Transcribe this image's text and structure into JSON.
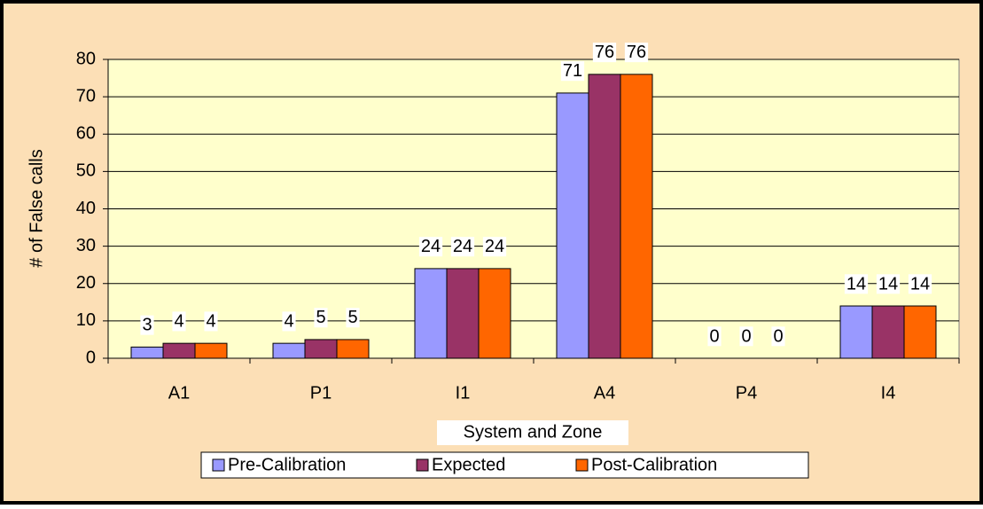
{
  "chart_data": {
    "type": "bar",
    "categories": [
      "A1",
      "P1",
      "I1",
      "A4",
      "P4",
      "I4"
    ],
    "series": [
      {
        "name": "Pre-Calibration",
        "color": "#9999ff",
        "values": [
          3,
          4,
          24,
          71,
          0,
          14
        ]
      },
      {
        "name": "Expected",
        "color": "#993366",
        "values": [
          4,
          5,
          24,
          76,
          0,
          14
        ]
      },
      {
        "name": "Post-Calibration",
        "color": "#ff6600",
        "values": [
          4,
          5,
          24,
          76,
          0,
          14
        ]
      }
    ],
    "xlabel": "System and Zone",
    "ylabel": "# of False calls",
    "ylim": [
      0,
      80
    ],
    "yticks": [
      0,
      10,
      20,
      30,
      40,
      50,
      60,
      70,
      80
    ],
    "grid": true,
    "legend": "bottom"
  }
}
